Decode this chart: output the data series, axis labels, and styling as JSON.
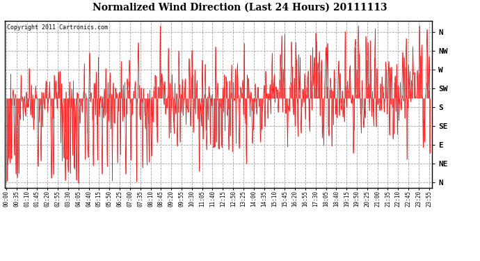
{
  "title": "Normalized Wind Direction (Last 24 Hours) 20111113",
  "copyright_text": "Copyright 2011 Cartronics.com",
  "line_color": "#FF0000",
  "background_color": "#FFFFFF",
  "grid_color": "#AAAAAA",
  "ytick_labels": [
    "N",
    "NW",
    "W",
    "SW",
    "S",
    "SE",
    "E",
    "NE",
    "N"
  ],
  "ytick_values": [
    8,
    7,
    6,
    5,
    4,
    3,
    2,
    1,
    0
  ],
  "ylim": [
    -0.3,
    8.6
  ],
  "seed": 42,
  "n_points": 576,
  "figsize": [
    6.9,
    3.75
  ],
  "dpi": 100
}
